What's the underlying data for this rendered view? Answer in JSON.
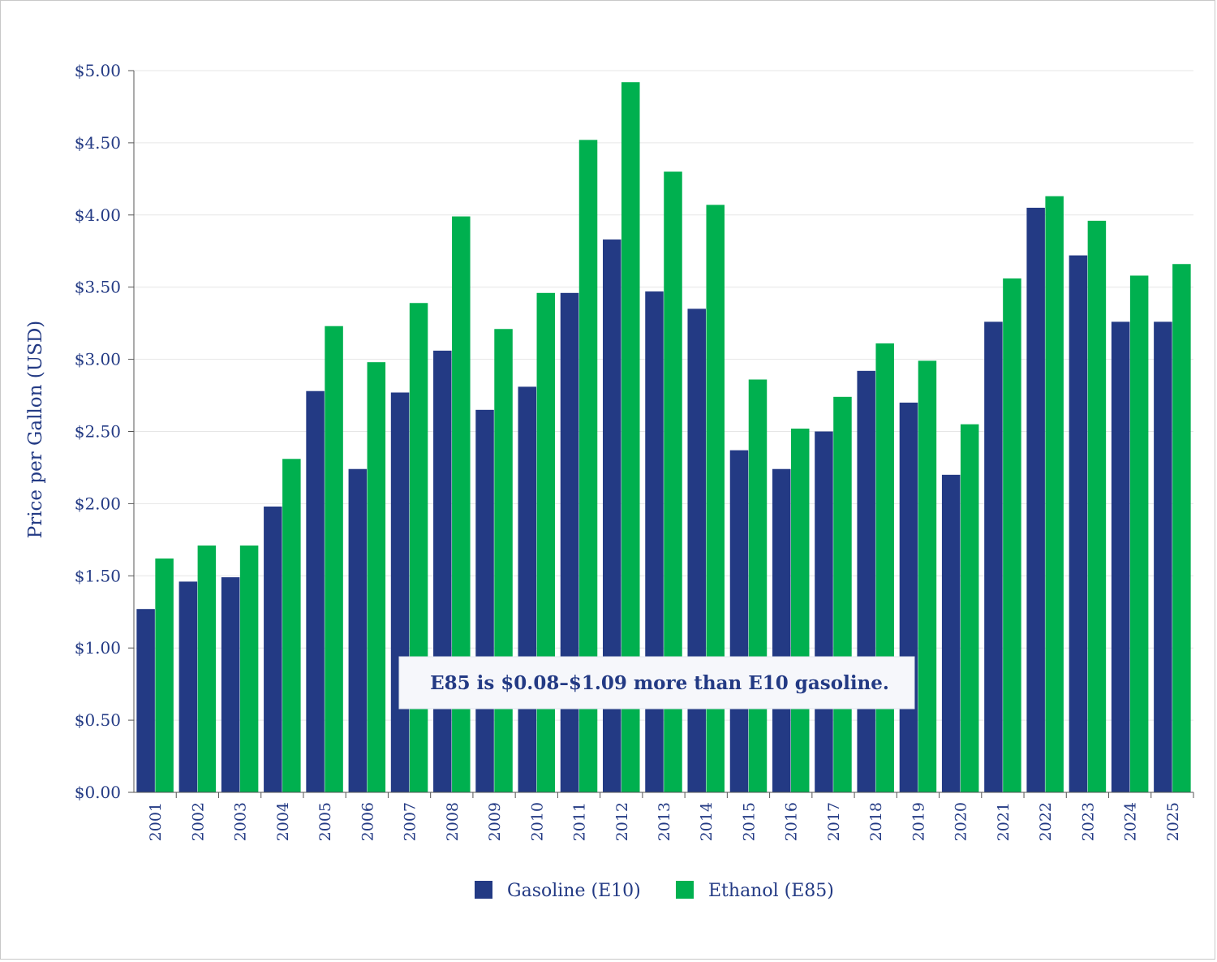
{
  "chart_data": {
    "type": "bar",
    "ylabel": "Price per Gallon (USD)",
    "xlabel": "",
    "ylim": [
      0,
      5
    ],
    "yticks": [
      "$0.00",
      "$0.50",
      "$1.00",
      "$1.50",
      "$2.00",
      "$2.50",
      "$3.00",
      "$3.50",
      "$4.00",
      "$4.50",
      "$5.00"
    ],
    "grid": "horizontal",
    "legend_position": "bottom-center",
    "categories": [
      "2001",
      "2002",
      "2003",
      "2004",
      "2005",
      "2006",
      "2007",
      "2008",
      "2009",
      "2010",
      "2011",
      "2012",
      "2013",
      "2014",
      "2015",
      "2016",
      "2017",
      "2018",
      "2019",
      "2020",
      "2021",
      "2022",
      "2023",
      "2024",
      "2025"
    ],
    "series": [
      {
        "name": "Gasoline (E10)",
        "color": "#233a84",
        "values": [
          1.27,
          1.46,
          1.49,
          1.98,
          2.78,
          2.24,
          2.77,
          3.06,
          2.65,
          2.81,
          3.46,
          3.83,
          3.47,
          3.35,
          2.37,
          2.24,
          2.5,
          2.92,
          2.7,
          2.2,
          3.26,
          4.05,
          3.72,
          3.26,
          3.26
        ]
      },
      {
        "name": "Ethanol (E85)",
        "color": "#00b04f",
        "values": [
          1.62,
          1.71,
          1.71,
          2.31,
          3.23,
          2.98,
          3.39,
          3.99,
          3.21,
          3.46,
          4.52,
          4.92,
          4.3,
          4.07,
          2.86,
          2.52,
          2.74,
          3.11,
          2.99,
          2.55,
          3.56,
          4.13,
          3.96,
          3.58,
          3.66
        ]
      }
    ],
    "annotation": "E85 is $0.08–$1.09 more than E10 gasoline."
  }
}
